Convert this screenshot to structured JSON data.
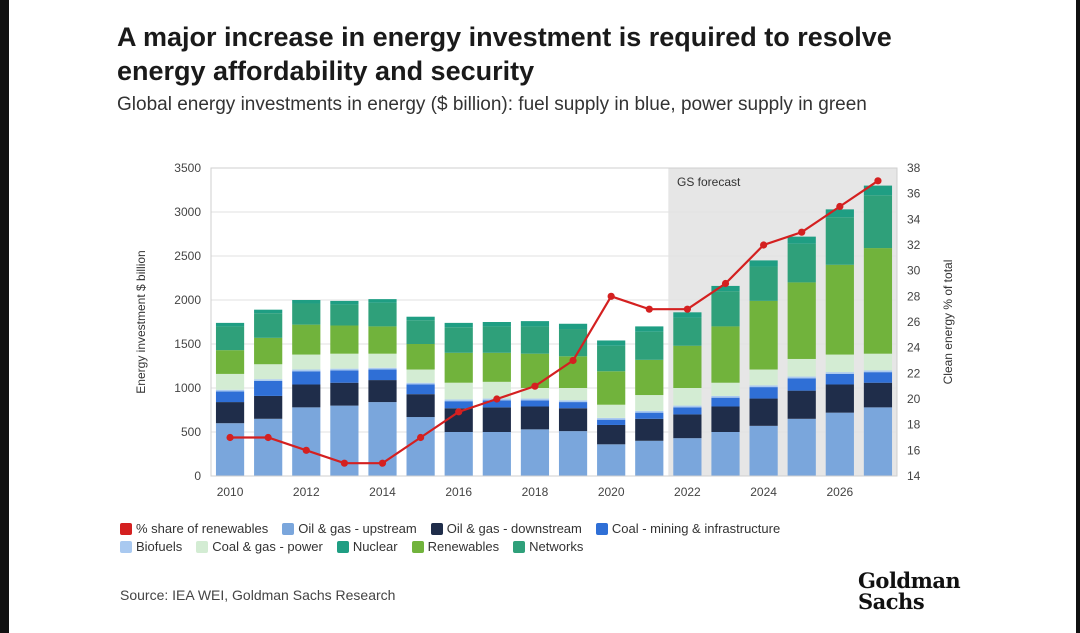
{
  "title": "A major increase in energy investment is required to resolve energy affordability and security",
  "subtitle": "Global energy investments in energy ($ billion): fuel supply in blue, power supply in green",
  "source": "Source: IEA WEI, Goldman Sachs Research",
  "logo_text": "Goldman Sachs",
  "colors": {
    "oil_gas_upstream": "#7aa6dc",
    "oil_gas_downstream": "#1f2d4a",
    "coal_mining": "#2f6fd6",
    "biofuels": "#a9c9f0",
    "coal_gas_power": "#d3ecd3",
    "nuclear": "#1f9e83",
    "renewables": "#71b33c",
    "networks": "#2fa07a",
    "renewables_share": "#d42020",
    "forecast_shade": "#e6e6e6"
  },
  "chart_data": {
    "type": "bar",
    "stacked": true,
    "secondary_type": "line",
    "title": "A major increase in energy investment is required to resolve energy affordability and security",
    "subtitle": "Global energy investments in energy ($ billion): fuel supply in blue, power supply in green",
    "ylabel": "Energy investment $ billion",
    "y2label": "Clean energy % of total",
    "ylim": [
      0,
      3500
    ],
    "y2lim": [
      14,
      38
    ],
    "yticks": [
      "0",
      "500",
      "1000",
      "1500",
      "2000",
      "2500",
      "3000",
      "3500"
    ],
    "y2ticks": [
      "14",
      "16",
      "18",
      "20",
      "22",
      "24",
      "26",
      "28",
      "30",
      "32",
      "34",
      "36",
      "38"
    ],
    "x": [
      2010,
      2011,
      2012,
      2013,
      2014,
      2015,
      2016,
      2017,
      2018,
      2019,
      2020,
      2021,
      2022,
      2023,
      2024,
      2025,
      2026,
      2027
    ],
    "xtick_labels": [
      "2010",
      "2012",
      "2014",
      "2016",
      "2018",
      "2020",
      "2022",
      "2024",
      "2026"
    ],
    "annotation": "GS forecast",
    "forecast_start": 2022,
    "series": [
      {
        "name": "Oil & gas - upstream",
        "key": "oil_gas_upstream",
        "values": [
          600,
          650,
          780,
          800,
          840,
          670,
          500,
          500,
          530,
          510,
          360,
          400,
          430,
          500,
          570,
          650,
          720,
          780
        ]
      },
      {
        "name": "Oil & gas - downstream",
        "key": "oil_gas_downstream",
        "values": [
          240,
          260,
          260,
          260,
          250,
          260,
          270,
          280,
          260,
          260,
          220,
          250,
          270,
          290,
          310,
          320,
          320,
          280
        ]
      },
      {
        "name": "Coal - mining & infrastructure",
        "key": "coal_mining",
        "values": [
          120,
          170,
          150,
          140,
          120,
          110,
          80,
          80,
          70,
          70,
          60,
          70,
          80,
          100,
          130,
          140,
          120,
          120
        ]
      },
      {
        "name": "Biofuels",
        "key": "biofuels",
        "values": [
          20,
          20,
          20,
          20,
          20,
          20,
          20,
          20,
          20,
          20,
          20,
          20,
          20,
          20,
          20,
          20,
          20,
          20
        ]
      },
      {
        "name": "Coal & gas - power",
        "key": "coal_gas_power",
        "values": [
          180,
          170,
          170,
          170,
          160,
          150,
          190,
          190,
          120,
          140,
          150,
          180,
          200,
          150,
          180,
          200,
          200,
          190
        ]
      },
      {
        "name": "Renewables",
        "key": "renewables",
        "values": [
          270,
          300,
          340,
          320,
          310,
          290,
          340,
          330,
          390,
          360,
          380,
          400,
          480,
          640,
          780,
          870,
          1020,
          1200
        ]
      },
      {
        "name": "Networks",
        "key": "networks",
        "values": [
          270,
          280,
          240,
          240,
          270,
          270,
          290,
          300,
          310,
          310,
          290,
          320,
          320,
          400,
          390,
          440,
          540,
          600
        ]
      },
      {
        "name": "Nuclear",
        "key": "nuclear",
        "values": [
          40,
          40,
          40,
          40,
          40,
          40,
          50,
          50,
          60,
          60,
          60,
          60,
          60,
          60,
          70,
          80,
          90,
          110
        ]
      }
    ],
    "line_series": {
      "name": "% share of renewables",
      "key": "renewables_share",
      "axis": "right",
      "values": [
        17,
        17,
        16,
        15,
        15,
        17,
        19,
        20,
        21,
        23,
        28,
        27,
        27,
        29,
        32,
        33,
        35,
        37
      ]
    },
    "legend": {
      "placement": "bottom",
      "row1": [
        {
          "label": "% share of renewables",
          "key": "renewables_share"
        },
        {
          "label": "Oil & gas - upstream",
          "key": "oil_gas_upstream"
        },
        {
          "label": "Oil & gas - downstream",
          "key": "oil_gas_downstream"
        },
        {
          "label": "Coal - mining & infrastructure",
          "key": "coal_mining"
        }
      ],
      "row2": [
        {
          "label": "Biofuels",
          "key": "biofuels"
        },
        {
          "label": "Coal & gas - power",
          "key": "coal_gas_power"
        },
        {
          "label": "Nuclear",
          "key": "nuclear"
        },
        {
          "label": "Renewables",
          "key": "renewables"
        },
        {
          "label": "Networks",
          "key": "networks"
        }
      ]
    },
    "grid": true
  }
}
